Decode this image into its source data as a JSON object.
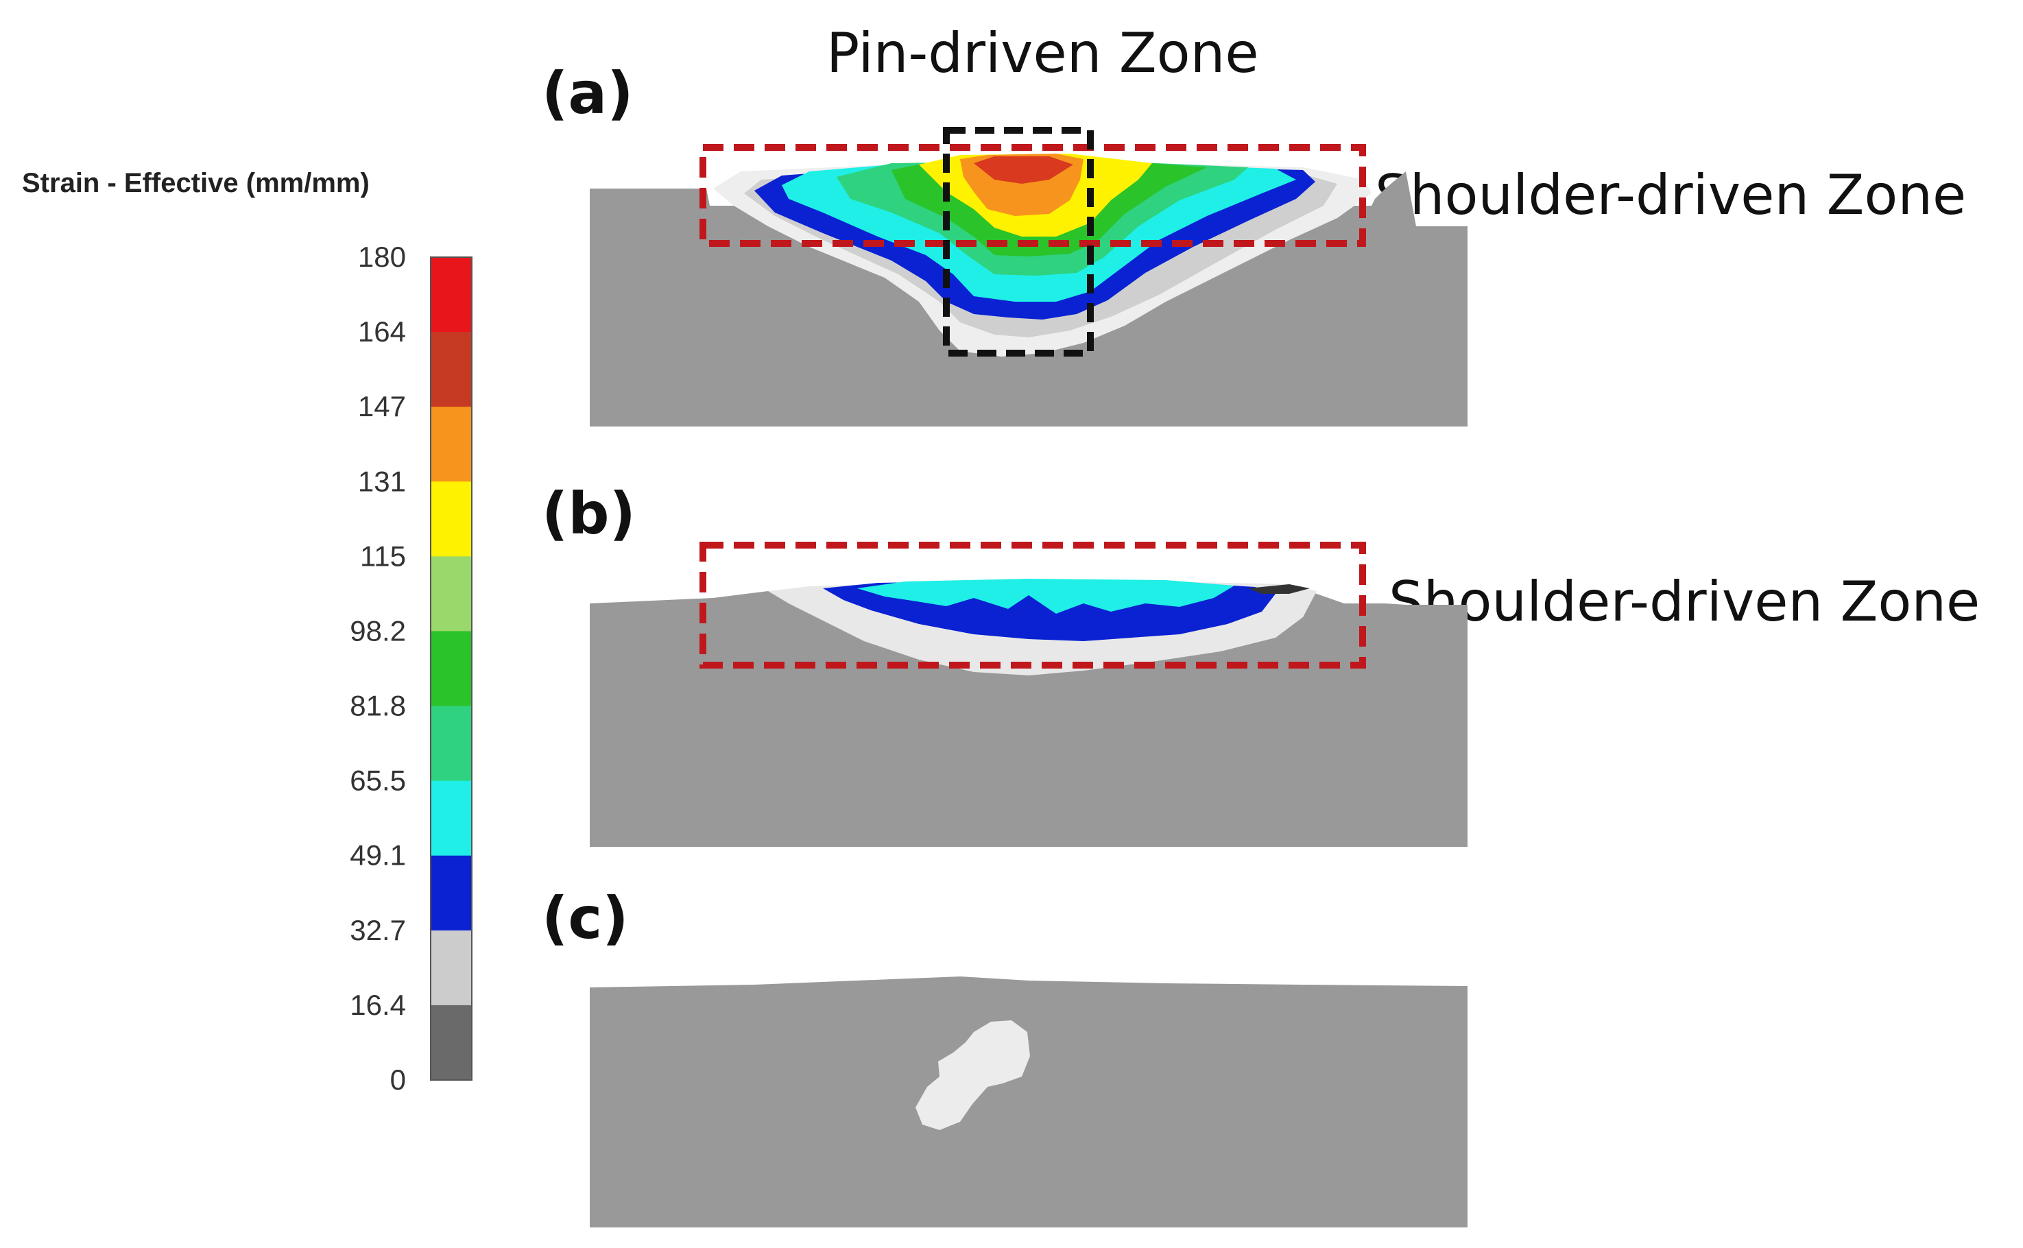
{
  "legend": {
    "title": "Strain - Effective (mm/mm)",
    "ticks": [
      "180",
      "164",
      "147",
      "131",
      "115",
      "98.2",
      "81.8",
      "65.5",
      "49.1",
      "32.7",
      "16.4",
      "0"
    ],
    "colors": [
      "#e8151b",
      "#c63a24",
      "#f7941d",
      "#fff200",
      "#99d86b",
      "#2ac32a",
      "#2fd27e",
      "#1fefe6",
      "#0a22d2",
      "#cccccc",
      "#6a6a6a"
    ]
  },
  "panels": {
    "a": {
      "label": "(a)",
      "top_label": "Pin-driven Zone",
      "side_label": "Shoulder-driven Zone"
    },
    "b": {
      "label": "(b)",
      "side_label": "Shoulder-driven Zone"
    },
    "c": {
      "label": "(c)"
    }
  },
  "colors": {
    "base_metal": "#999999",
    "shoulder_box": "#c0171c",
    "pin_box": "#111111"
  }
}
